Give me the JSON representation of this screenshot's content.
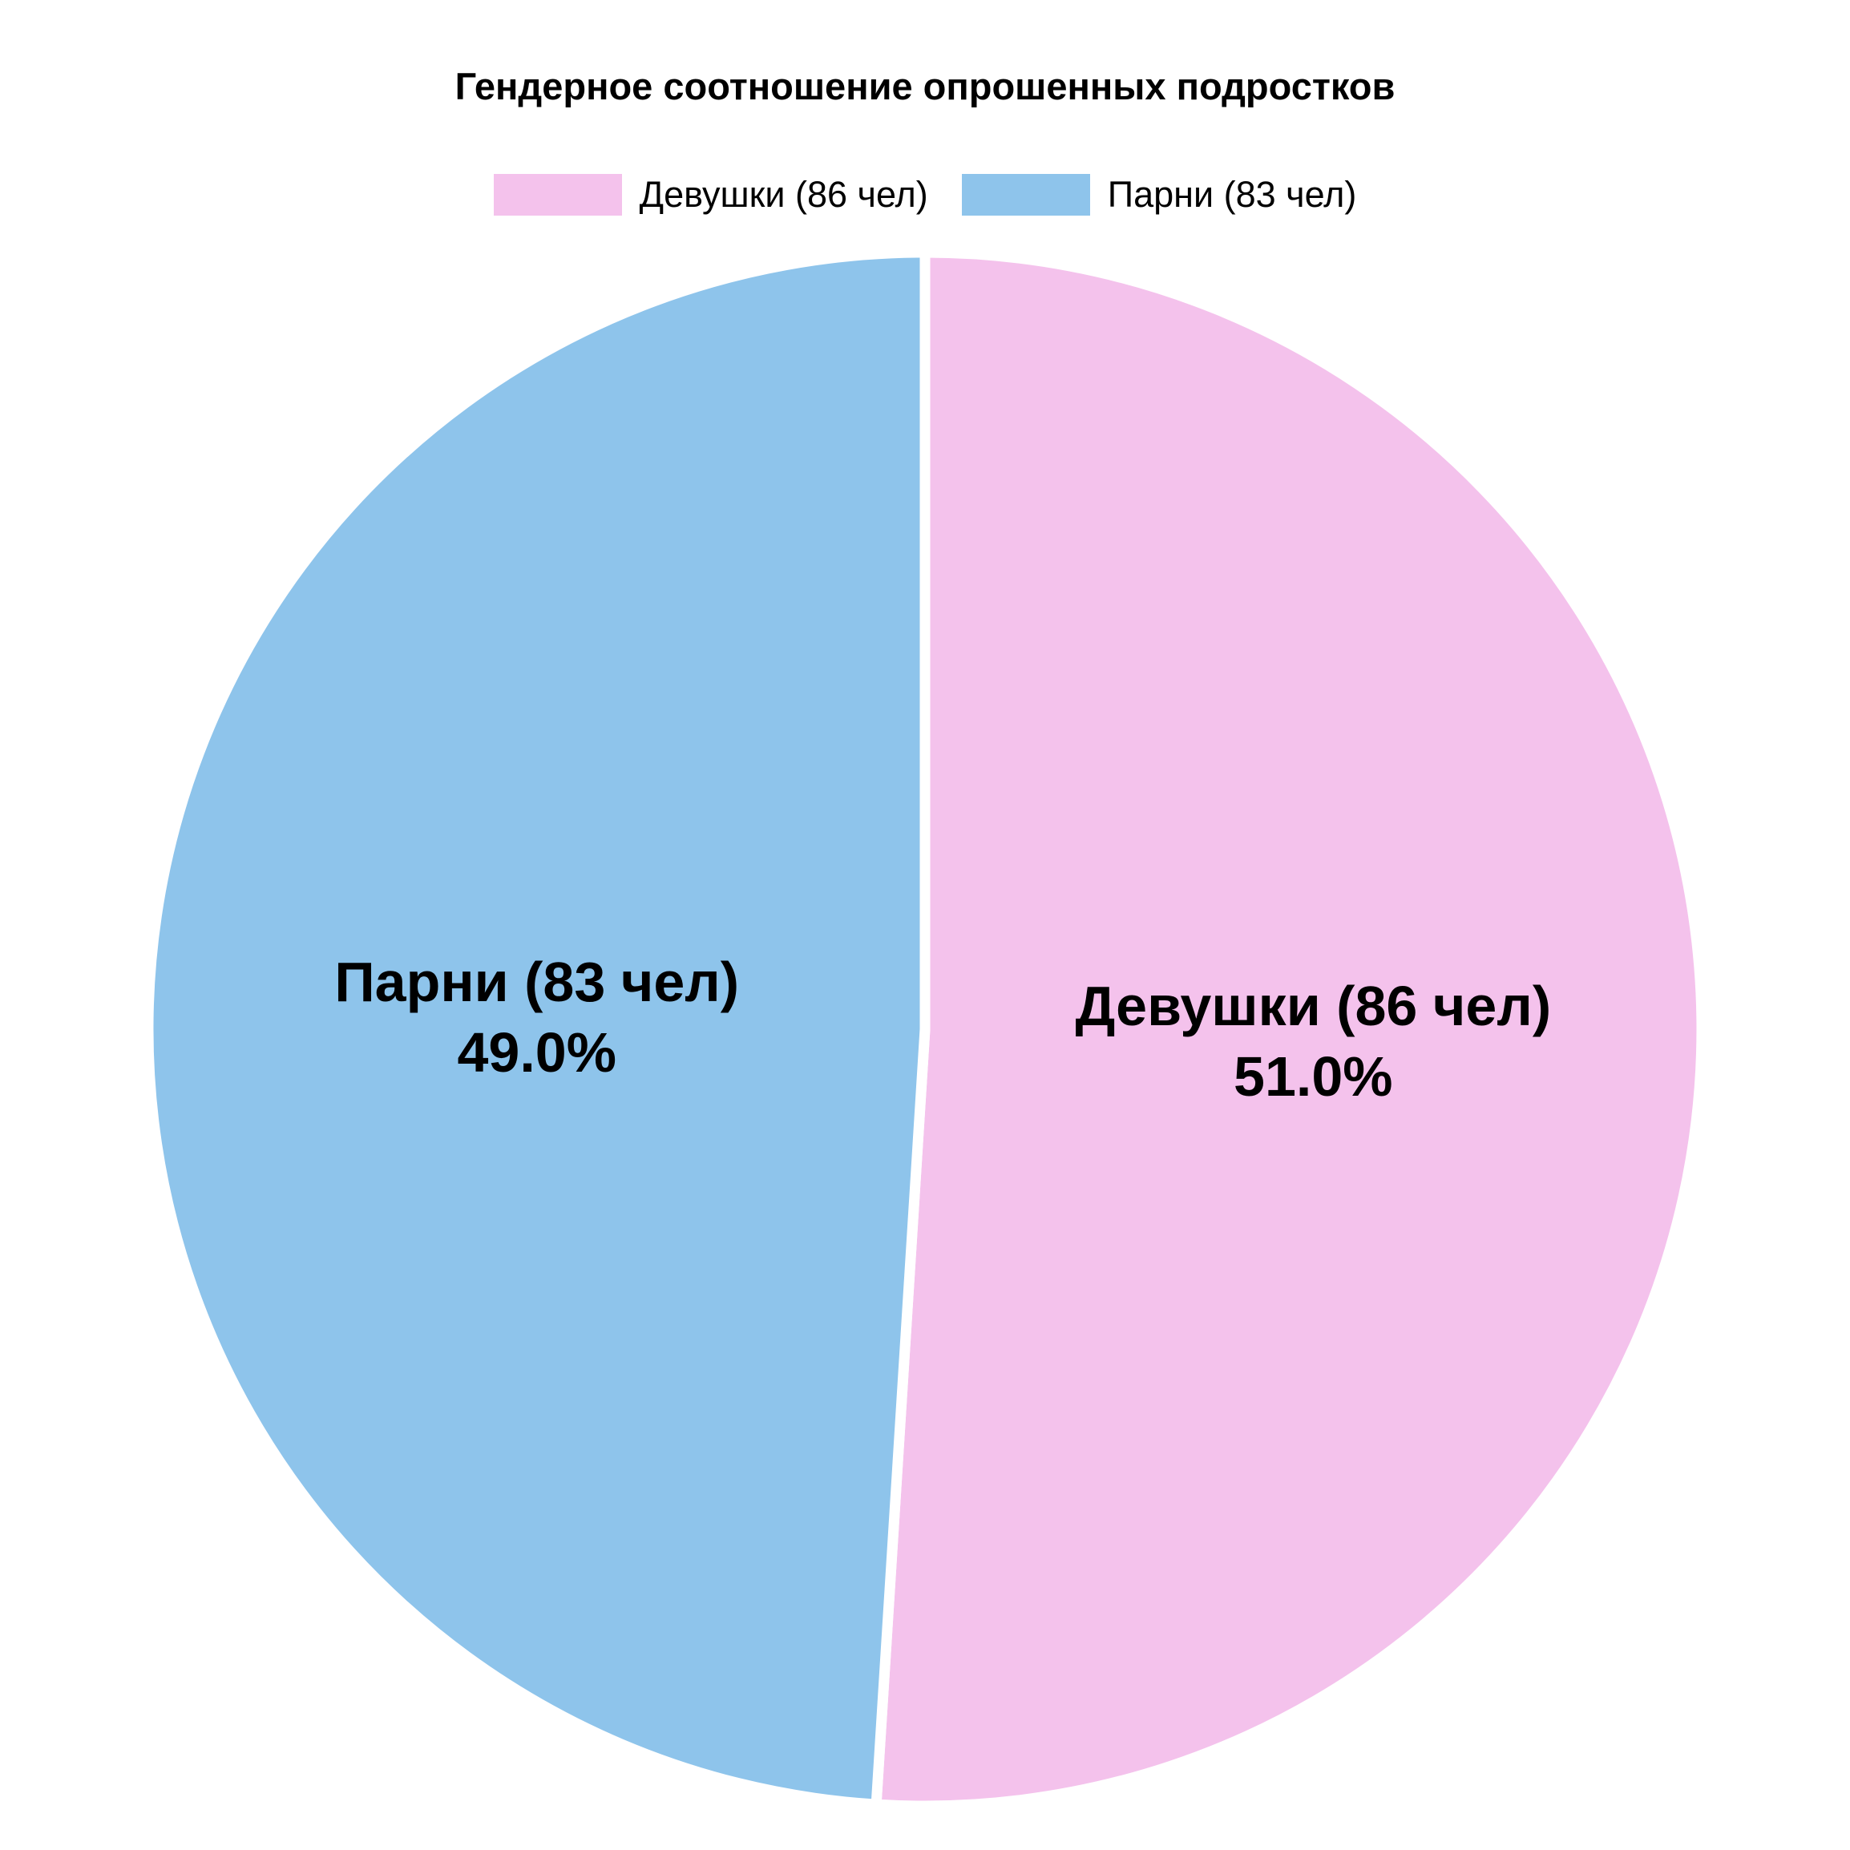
{
  "chart_data": {
    "type": "pie",
    "title": "Гендерное соотношение опрошенных подростков",
    "categories": [
      "Девушки (86 чел)",
      "Парни (83 чел)"
    ],
    "values": [
      86,
      83
    ],
    "slices": [
      {
        "label": "Девушки (86 чел)",
        "count": 86,
        "percent": 51.0,
        "percent_label": "51.0%",
        "color": "#f4c2ec"
      },
      {
        "label": "Парни (83 чел)",
        "count": 83,
        "percent": 49.0,
        "percent_label": "49.0%",
        "color": "#8ec4eb"
      }
    ],
    "start_angle": "top",
    "direction": "clockwise",
    "separator_color": "#ffffff",
    "label_text_color": "#000000",
    "legend_position": "top-center",
    "legend": [
      {
        "label": "Девушки (86 чел)",
        "color": "#f4c2ec"
      },
      {
        "label": "Парни (83 чел)",
        "color": "#8ec4eb"
      }
    ]
  }
}
